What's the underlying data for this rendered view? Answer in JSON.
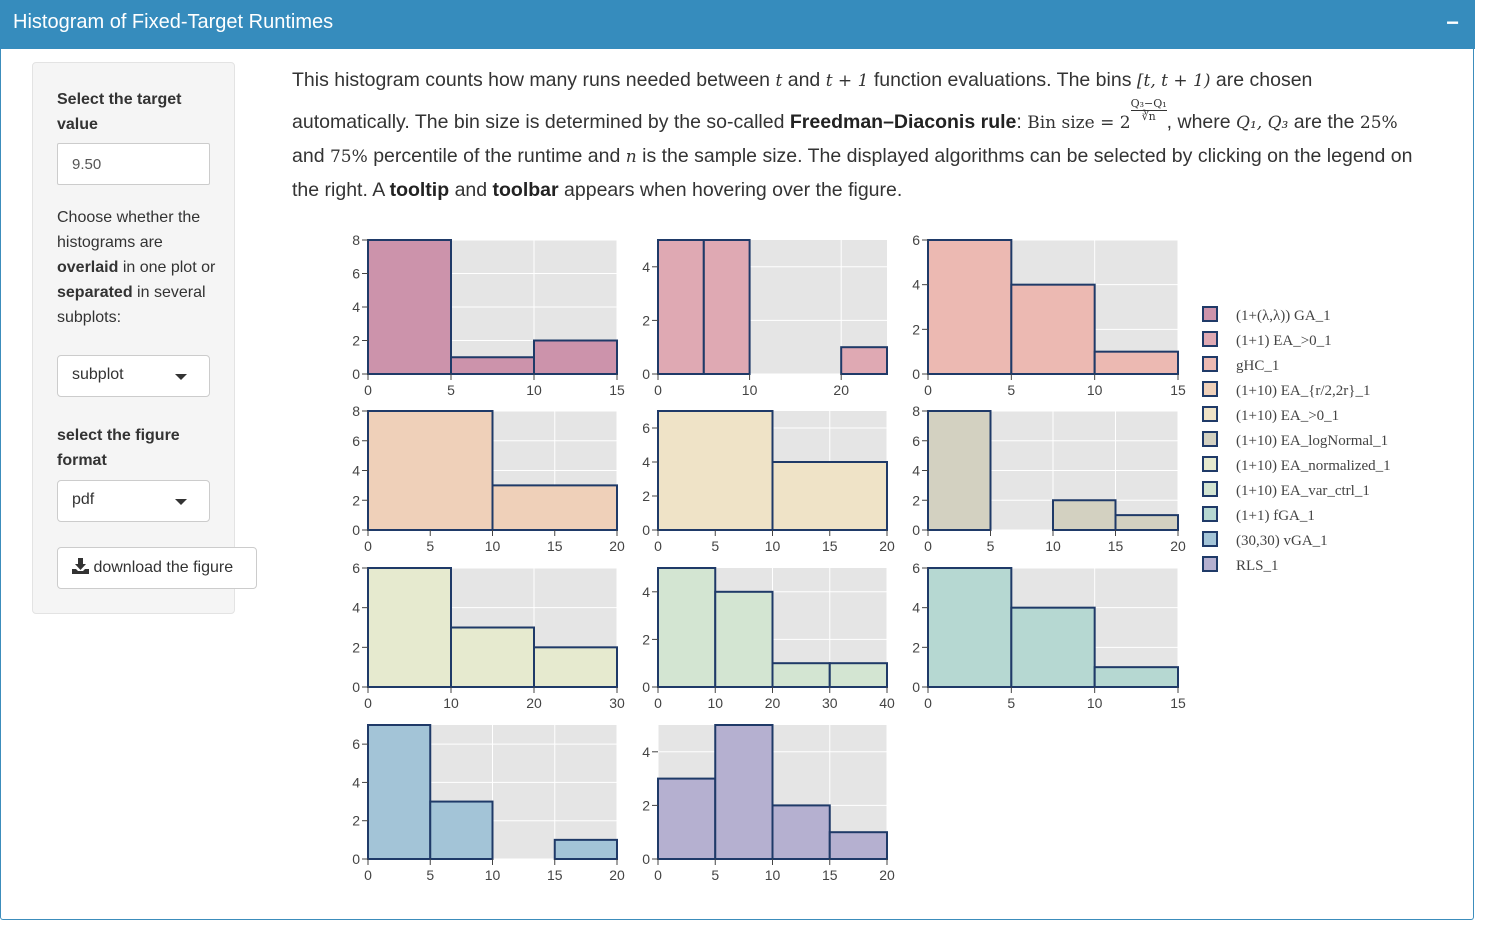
{
  "header": {
    "title": "Histogram of Fixed-Target Runtimes",
    "collapse_label": "−"
  },
  "sidebar": {
    "target_label": "Select the target value",
    "target_value": "9.50",
    "choose_text_1": "Choose whether the histograms are",
    "choose_bold_1": "overlaid",
    "choose_text_2": "in one plot or",
    "choose_bold_2": "separated",
    "choose_text_3": "in several subplots:",
    "mode_selected": "subplot",
    "format_label": "select the figure format",
    "format_selected": "pdf",
    "download_label": "download the figure"
  },
  "description": {
    "p1": "This histogram counts how many runs needed between",
    "p2": "and",
    "p3": "function evaluations. The bins",
    "p4": "are chosen automatically. The bin size is determined by the so-called",
    "rule": "Freedman–Diaconis rule",
    "p5": ":",
    "binsize": "Bin size =",
    "p6": ", where",
    "p7": "are the",
    "p8": "and",
    "p9": "percentile of the runtime and",
    "p10": "is the sample size. The displayed algorithms can be selected by clicking on the legend on the right. A",
    "tooltip": "tooltip",
    "p11": "and",
    "toolbar": "toolbar",
    "p12": "appears when hovering over the figure.",
    "m_t": "t",
    "m_t1": "t + 1",
    "m_bin": "[t, t + 1)",
    "m_q": "Q₁, Q₃",
    "m_25": "25%",
    "m_75": "75%",
    "m_n": "n",
    "m_frac_num": "Q₃−Q₁",
    "m_frac_den": "∛n",
    "m_two": "2"
  },
  "chart_data": [
    {
      "type": "bar",
      "name": "(1+(λ,λ)) GA_1",
      "color": "#cc93ab",
      "bins": [
        [
          0,
          5,
          8
        ],
        [
          5,
          10,
          1
        ],
        [
          10,
          15,
          2
        ]
      ],
      "xlim": [
        0,
        15
      ],
      "xticks": [
        0,
        5,
        10,
        15
      ],
      "ylim": [
        0,
        8
      ],
      "yticks": [
        0,
        2,
        4,
        6,
        8
      ]
    },
    {
      "type": "bar",
      "name": "(1+1) EA_>0_1",
      "color": "#dfa9b3",
      "bins": [
        [
          0,
          5,
          5
        ],
        [
          5,
          10,
          5
        ],
        [
          20,
          25,
          1
        ]
      ],
      "xlim": [
        0,
        25
      ],
      "xticks": [
        0,
        10,
        20
      ],
      "ylim": [
        0,
        5
      ],
      "yticks": [
        0,
        2,
        4
      ]
    },
    {
      "type": "bar",
      "name": "gHC_1",
      "color": "#ecb9b2",
      "bins": [
        [
          0,
          5,
          6
        ],
        [
          5,
          10,
          4
        ],
        [
          10,
          15,
          1
        ]
      ],
      "xlim": [
        0,
        15
      ],
      "xticks": [
        0,
        5,
        10,
        15
      ],
      "ylim": [
        0,
        6
      ],
      "yticks": [
        0,
        2,
        4,
        6
      ]
    },
    {
      "type": "bar",
      "name": "(1+10) EA_{r/2,2r}_1",
      "color": "#efd0b9",
      "bins": [
        [
          0,
          10,
          8
        ],
        [
          10,
          20,
          3
        ]
      ],
      "xlim": [
        0,
        20
      ],
      "xticks": [
        0,
        5,
        10,
        15,
        20
      ],
      "ylim": [
        0,
        8
      ],
      "yticks": [
        0,
        2,
        4,
        6,
        8
      ]
    },
    {
      "type": "bar",
      "name": "(1+10) EA_>0_1",
      "color": "#efe3c7",
      "bins": [
        [
          0,
          10,
          7
        ],
        [
          10,
          20,
          4
        ]
      ],
      "xlim": [
        0,
        20
      ],
      "xticks": [
        0,
        5,
        10,
        15,
        20
      ],
      "ylim": [
        0,
        7
      ],
      "yticks": [
        0,
        2,
        4,
        6
      ]
    },
    {
      "type": "bar",
      "name": "(1+10) EA_logNormal_1",
      "color": "#d3d1c1",
      "bins": [
        [
          0,
          5,
          8
        ],
        [
          10,
          15,
          2
        ],
        [
          15,
          20,
          1
        ]
      ],
      "xlim": [
        0,
        20
      ],
      "xticks": [
        0,
        5,
        10,
        15,
        20
      ],
      "ylim": [
        0,
        8
      ],
      "yticks": [
        0,
        2,
        4,
        6,
        8
      ]
    },
    {
      "type": "bar",
      "name": "(1+10) EA_normalized_1",
      "color": "#e6eacf",
      "bins": [
        [
          0,
          10,
          6
        ],
        [
          10,
          20,
          3
        ],
        [
          20,
          30,
          2
        ]
      ],
      "xlim": [
        0,
        30
      ],
      "xticks": [
        0,
        10,
        20,
        30
      ],
      "ylim": [
        0,
        6
      ],
      "yticks": [
        0,
        2,
        4,
        6
      ]
    },
    {
      "type": "bar",
      "name": "(1+10) EA_var_ctrl_1",
      "color": "#d3e5d2",
      "bins": [
        [
          0,
          10,
          5
        ],
        [
          10,
          20,
          4
        ],
        [
          20,
          30,
          1
        ],
        [
          30,
          40,
          1
        ]
      ],
      "xlim": [
        0,
        40
      ],
      "xticks": [
        0,
        10,
        20,
        30,
        40
      ],
      "ylim": [
        0,
        5
      ],
      "yticks": [
        0,
        2,
        4
      ]
    },
    {
      "type": "bar",
      "name": "(1+1) fGA_1",
      "color": "#b6d8d2",
      "bins": [
        [
          0,
          5,
          6
        ],
        [
          5,
          10,
          4
        ],
        [
          10,
          15,
          1
        ]
      ],
      "xlim": [
        0,
        15
      ],
      "xticks": [
        0,
        5,
        10,
        15
      ],
      "ylim": [
        0,
        6
      ],
      "yticks": [
        0,
        2,
        4,
        6
      ]
    },
    {
      "type": "bar",
      "name": "(30,30) vGA_1",
      "color": "#a3c4d7",
      "bins": [
        [
          0,
          5,
          7
        ],
        [
          5,
          10,
          3
        ],
        [
          15,
          20,
          1
        ]
      ],
      "xlim": [
        0,
        20
      ],
      "xticks": [
        0,
        5,
        10,
        15,
        20
      ],
      "ylim": [
        0,
        7
      ],
      "yticks": [
        0,
        2,
        4,
        6
      ]
    },
    {
      "type": "bar",
      "name": "RLS_1",
      "color": "#b5b0d0",
      "bins": [
        [
          0,
          5,
          3
        ],
        [
          5,
          10,
          5
        ],
        [
          10,
          15,
          2
        ],
        [
          15,
          20,
          1
        ]
      ],
      "xlim": [
        0,
        20
      ],
      "xticks": [
        0,
        5,
        10,
        15,
        20
      ],
      "ylim": [
        0,
        5
      ],
      "yticks": [
        0,
        2,
        4
      ]
    }
  ],
  "colors": {
    "header": "#368cbd",
    "plot_bg": "#e5e5e5",
    "bar_border": "#1f3a68"
  }
}
